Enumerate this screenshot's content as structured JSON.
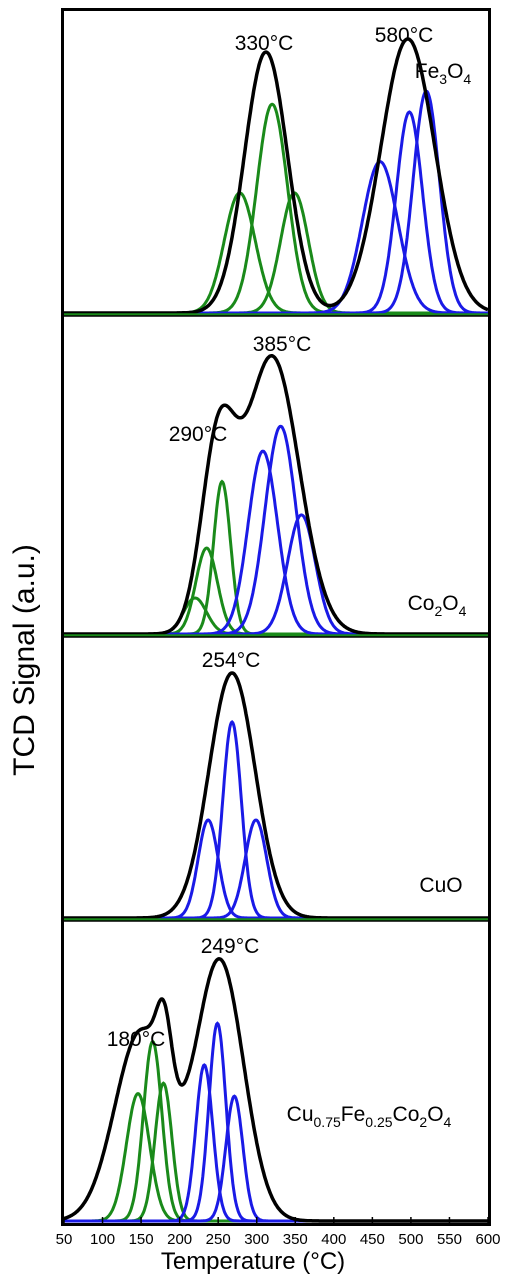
{
  "chart_data": {
    "type": "line",
    "ylabel": "TCD Signal (a.u.)",
    "xlabel": "Temperature (°C)",
    "xlim": [
      50,
      600
    ],
    "x_ticks": [
      50,
      100,
      150,
      200,
      250,
      300,
      350,
      400,
      450,
      500,
      550,
      600
    ],
    "x_tick_labels": [
      "50",
      "100",
      "150",
      "200",
      "250",
      "300",
      "350",
      "400",
      "450",
      "500",
      "550",
      "600"
    ],
    "grid": false,
    "colors": {
      "envelope": "#000000",
      "green": "#1a8a1a",
      "blue": "#1a1ae6"
    },
    "panels": [
      {
        "label": "Fe3O4",
        "label_parts": [
          {
            "t": "Fe",
            "sub": false
          },
          {
            "t": "3",
            "sub": true
          },
          {
            "t": "O",
            "sub": false
          },
          {
            "t": "4",
            "sub": true
          }
        ],
        "annotations": [
          "330°C",
          "580°C"
        ],
        "components": [
          {
            "color": "green",
            "center": 278,
            "height": 0.46,
            "width": 20
          },
          {
            "color": "green",
            "center": 320,
            "height": 0.8,
            "width": 20
          },
          {
            "color": "green",
            "center": 349,
            "height": 0.46,
            "width": 18
          },
          {
            "color": "blue",
            "center": 460,
            "height": 0.58,
            "width": 23
          },
          {
            "color": "blue",
            "center": 498,
            "height": 0.77,
            "width": 17
          },
          {
            "color": "blue",
            "center": 520,
            "height": 0.85,
            "width": 17
          }
        ],
        "envelope_peaks": [
          {
            "center": 312,
            "height": 1.0,
            "width": 28
          },
          {
            "center": 496,
            "height": 1.05,
            "width": 35
          }
        ]
      },
      {
        "label": "Co2O4",
        "label_parts": [
          {
            "t": "Co",
            "sub": false
          },
          {
            "t": "2",
            "sub": true
          },
          {
            "t": "O",
            "sub": false
          },
          {
            "t": "4",
            "sub": true
          }
        ],
        "annotations": [
          "290°C",
          "385°C"
        ],
        "components": [
          {
            "color": "green",
            "center": 220,
            "height": 0.13,
            "width": 15
          },
          {
            "color": "green",
            "center": 235,
            "height": 0.31,
            "width": 14
          },
          {
            "color": "green",
            "center": 255,
            "height": 0.55,
            "width": 11
          },
          {
            "color": "blue",
            "center": 308,
            "height": 0.66,
            "width": 19
          },
          {
            "color": "blue",
            "center": 331,
            "height": 0.75,
            "width": 20
          },
          {
            "color": "blue",
            "center": 358,
            "height": 0.43,
            "width": 18
          }
        ],
        "envelope_peaks": [
          {
            "center": 250,
            "height": 0.66,
            "width": 22
          },
          {
            "center": 320,
            "height": 1.0,
            "width": 35
          }
        ]
      },
      {
        "label": "CuO",
        "label_parts": [
          {
            "t": "CuO",
            "sub": false
          }
        ],
        "annotations": [
          "254°C"
        ],
        "components": [
          {
            "color": "blue",
            "center": 237,
            "height": 0.4,
            "width": 13
          },
          {
            "color": "blue",
            "center": 268,
            "height": 0.8,
            "width": 12
          },
          {
            "color": "blue",
            "center": 299,
            "height": 0.4,
            "width": 14
          }
        ],
        "envelope_peaks": [
          {
            "center": 268,
            "height": 1.0,
            "width": 30
          }
        ]
      },
      {
        "label": "Cu0.75Fe0.25Co2O4",
        "label_parts": [
          {
            "t": "Cu",
            "sub": false
          },
          {
            "t": "0.75",
            "sub": true
          },
          {
            "t": "Fe",
            "sub": false
          },
          {
            "t": "0.25",
            "sub": true
          },
          {
            "t": "Co",
            "sub": false
          },
          {
            "t": "2",
            "sub": true
          },
          {
            "t": "O",
            "sub": false
          },
          {
            "t": "4",
            "sub": true
          }
        ],
        "annotations": [
          "180°C",
          "249°C"
        ],
        "components": [
          {
            "color": "green",
            "center": 146,
            "height": 0.49,
            "width": 15
          },
          {
            "color": "green",
            "center": 165,
            "height": 0.69,
            "width": 12
          },
          {
            "color": "green",
            "center": 179,
            "height": 0.53,
            "width": 11
          },
          {
            "color": "blue",
            "center": 232,
            "height": 0.6,
            "width": 11
          },
          {
            "color": "blue",
            "center": 249,
            "height": 0.76,
            "width": 11
          },
          {
            "color": "blue",
            "center": 271,
            "height": 0.48,
            "width": 11
          }
        ],
        "envelope_peaks": [
          {
            "center": 150,
            "height": 0.73,
            "width": 34
          },
          {
            "center": 180,
            "height": 0.28,
            "width": 10
          },
          {
            "center": 252,
            "height": 1.0,
            "width": 31
          }
        ]
      }
    ]
  }
}
